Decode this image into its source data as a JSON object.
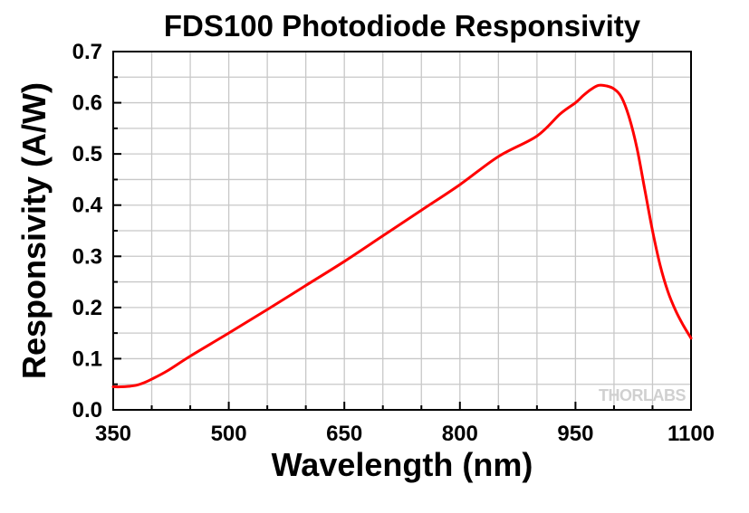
{
  "chart_data": {
    "type": "line",
    "title": "FDS100 Photodiode Responsivity",
    "xlabel": "Wavelength (nm)",
    "ylabel": "Responsivity (A/W)",
    "xlim": [
      350,
      1100
    ],
    "ylim": [
      0.0,
      0.7
    ],
    "x_ticks": [
      350,
      500,
      650,
      800,
      950,
      1100
    ],
    "x_tick_labels": [
      "350",
      "500",
      "650",
      "800",
      "950",
      "1100"
    ],
    "y_ticks": [
      0.0,
      0.1,
      0.2,
      0.3,
      0.4,
      0.5,
      0.6,
      0.7
    ],
    "y_tick_labels": [
      "0.0",
      "0.1",
      "0.2",
      "0.3",
      "0.4",
      "0.5",
      "0.6",
      "0.7"
    ],
    "grid": true,
    "series": [
      {
        "color": "#ff0000",
        "x": [
          350,
          360,
          370,
          380,
          390,
          400,
          420,
          450,
          500,
          550,
          600,
          650,
          700,
          750,
          800,
          850,
          900,
          930,
          950,
          960,
          970,
          980,
          990,
          1000,
          1010,
          1020,
          1030,
          1040,
          1050,
          1060,
          1070,
          1080,
          1090,
          1100
        ],
        "y": [
          0.045,
          0.045,
          0.046,
          0.048,
          0.053,
          0.06,
          0.076,
          0.105,
          0.15,
          0.196,
          0.243,
          0.29,
          0.34,
          0.39,
          0.44,
          0.495,
          0.535,
          0.578,
          0.6,
          0.614,
          0.626,
          0.634,
          0.633,
          0.627,
          0.61,
          0.57,
          0.51,
          0.43,
          0.35,
          0.282,
          0.231,
          0.194,
          0.165,
          0.14
        ]
      }
    ]
  },
  "watermark": {
    "text": "THORLABS"
  }
}
